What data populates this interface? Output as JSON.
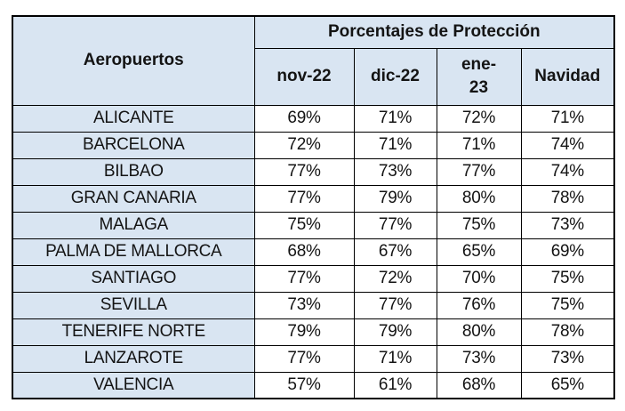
{
  "colors": {
    "header_fill": "#d9e5f2",
    "border": "#000000",
    "text": "#141414",
    "cell_fill": "#ffffff",
    "page_background": "#ffffff"
  },
  "table": {
    "corner_header": "Aeropuertos",
    "group_header": "Porcentajes de Protección",
    "columns": [
      "nov-22",
      "dic-22",
      "ene-\n23",
      "Navidad"
    ],
    "rows": [
      {
        "airport": "ALICANTE",
        "values": [
          "69%",
          "71%",
          "72%",
          "71%"
        ]
      },
      {
        "airport": "BARCELONA",
        "values": [
          "72%",
          "71%",
          "71%",
          "74%"
        ]
      },
      {
        "airport": "BILBAO",
        "values": [
          "77%",
          "73%",
          "77%",
          "74%"
        ]
      },
      {
        "airport": "GRAN CANARIA",
        "values": [
          "77%",
          "79%",
          "80%",
          "78%"
        ]
      },
      {
        "airport": "MALAGA",
        "values": [
          "75%",
          "77%",
          "75%",
          "73%"
        ]
      },
      {
        "airport": "PALMA DE MALLORCA",
        "values": [
          "68%",
          "67%",
          "65%",
          "69%"
        ]
      },
      {
        "airport": "SANTIAGO",
        "values": [
          "77%",
          "72%",
          "70%",
          "75%"
        ]
      },
      {
        "airport": "SEVILLA",
        "values": [
          "73%",
          "77%",
          "76%",
          "75%"
        ]
      },
      {
        "airport": "TENERIFE NORTE",
        "values": [
          "79%",
          "79%",
          "80%",
          "78%"
        ]
      },
      {
        "airport": "LANZAROTE",
        "values": [
          "77%",
          "71%",
          "73%",
          "73%"
        ]
      },
      {
        "airport": "VALENCIA",
        "values": [
          "57%",
          "61%",
          "68%",
          "65%"
        ]
      }
    ]
  },
  "chart_data": {
    "type": "table",
    "title": "Porcentajes de Protección",
    "row_header_label": "Aeropuertos",
    "unit": "%",
    "categories": [
      "ALICANTE",
      "BARCELONA",
      "BILBAO",
      "GRAN CANARIA",
      "MALAGA",
      "PALMA DE MALLORCA",
      "SANTIAGO",
      "SEVILLA",
      "TENERIFE NORTE",
      "LANZAROTE",
      "VALENCIA"
    ],
    "series": [
      {
        "name": "nov-22",
        "values": [
          69,
          72,
          77,
          77,
          75,
          68,
          77,
          73,
          79,
          77,
          57
        ]
      },
      {
        "name": "dic-22",
        "values": [
          71,
          71,
          73,
          79,
          77,
          67,
          72,
          77,
          79,
          71,
          61
        ]
      },
      {
        "name": "ene-23",
        "values": [
          72,
          71,
          77,
          80,
          75,
          65,
          70,
          76,
          80,
          73,
          68
        ]
      },
      {
        "name": "Navidad",
        "values": [
          71,
          74,
          74,
          78,
          73,
          69,
          75,
          75,
          78,
          73,
          65
        ]
      }
    ]
  }
}
